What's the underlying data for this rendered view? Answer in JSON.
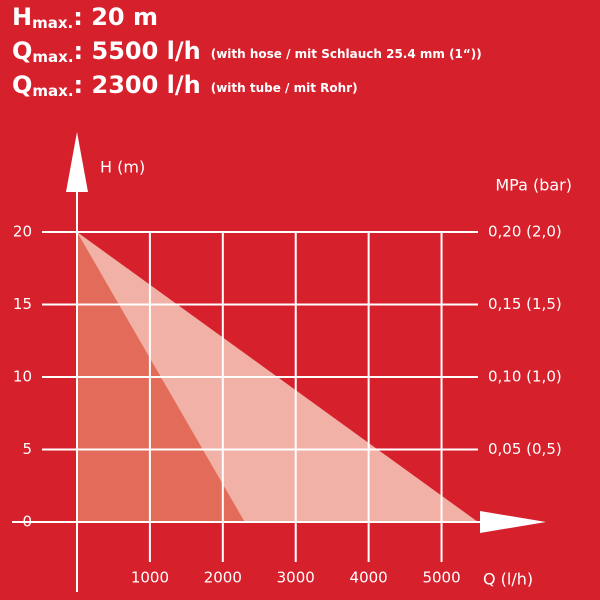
{
  "chart_data": {
    "type": "area",
    "header": [
      {
        "symbol": "H",
        "subscript": "max.",
        "value": ": 20 m"
      },
      {
        "symbol": "Q",
        "subscript": "max.",
        "value": ": 5500 l/h",
        "note": "(with hose / mit Schlauch 25.4 mm (1“))"
      },
      {
        "symbol": "Q",
        "subscript": "max.",
        "value": ": 2300 l/h",
        "note": "(with tube / mit Rohr)"
      }
    ],
    "ylabel": "H (m)",
    "xlabel": "Q (l/h)",
    "y2label": "MPa (bar)",
    "series": [
      {
        "name": "with hose",
        "color": "#f1b1a6",
        "x": [
          0,
          5500
        ],
        "values": [
          20,
          0
        ]
      },
      {
        "name": "with tube",
        "color": "#e36b59",
        "x": [
          0,
          2300
        ],
        "values": [
          20,
          0
        ]
      }
    ],
    "xlim": [
      0,
      5500
    ],
    "xticks": [
      1000,
      2000,
      3000,
      4000,
      5000
    ],
    "ylim": [
      0,
      20
    ],
    "yticks": [
      0,
      5,
      10,
      15,
      20
    ],
    "y2lim": [
      0,
      0.2
    ],
    "y2ticks": [
      {
        "value": 0.05,
        "label": "0,05 (0,5)"
      },
      {
        "value": 0.1,
        "label": "0,10 (1,0)"
      },
      {
        "value": 0.15,
        "label": "0,15 (1,5)"
      },
      {
        "value": 0.2,
        "label": "0,20 (2,0)"
      }
    ],
    "grid": true,
    "background": "#d6202c"
  }
}
